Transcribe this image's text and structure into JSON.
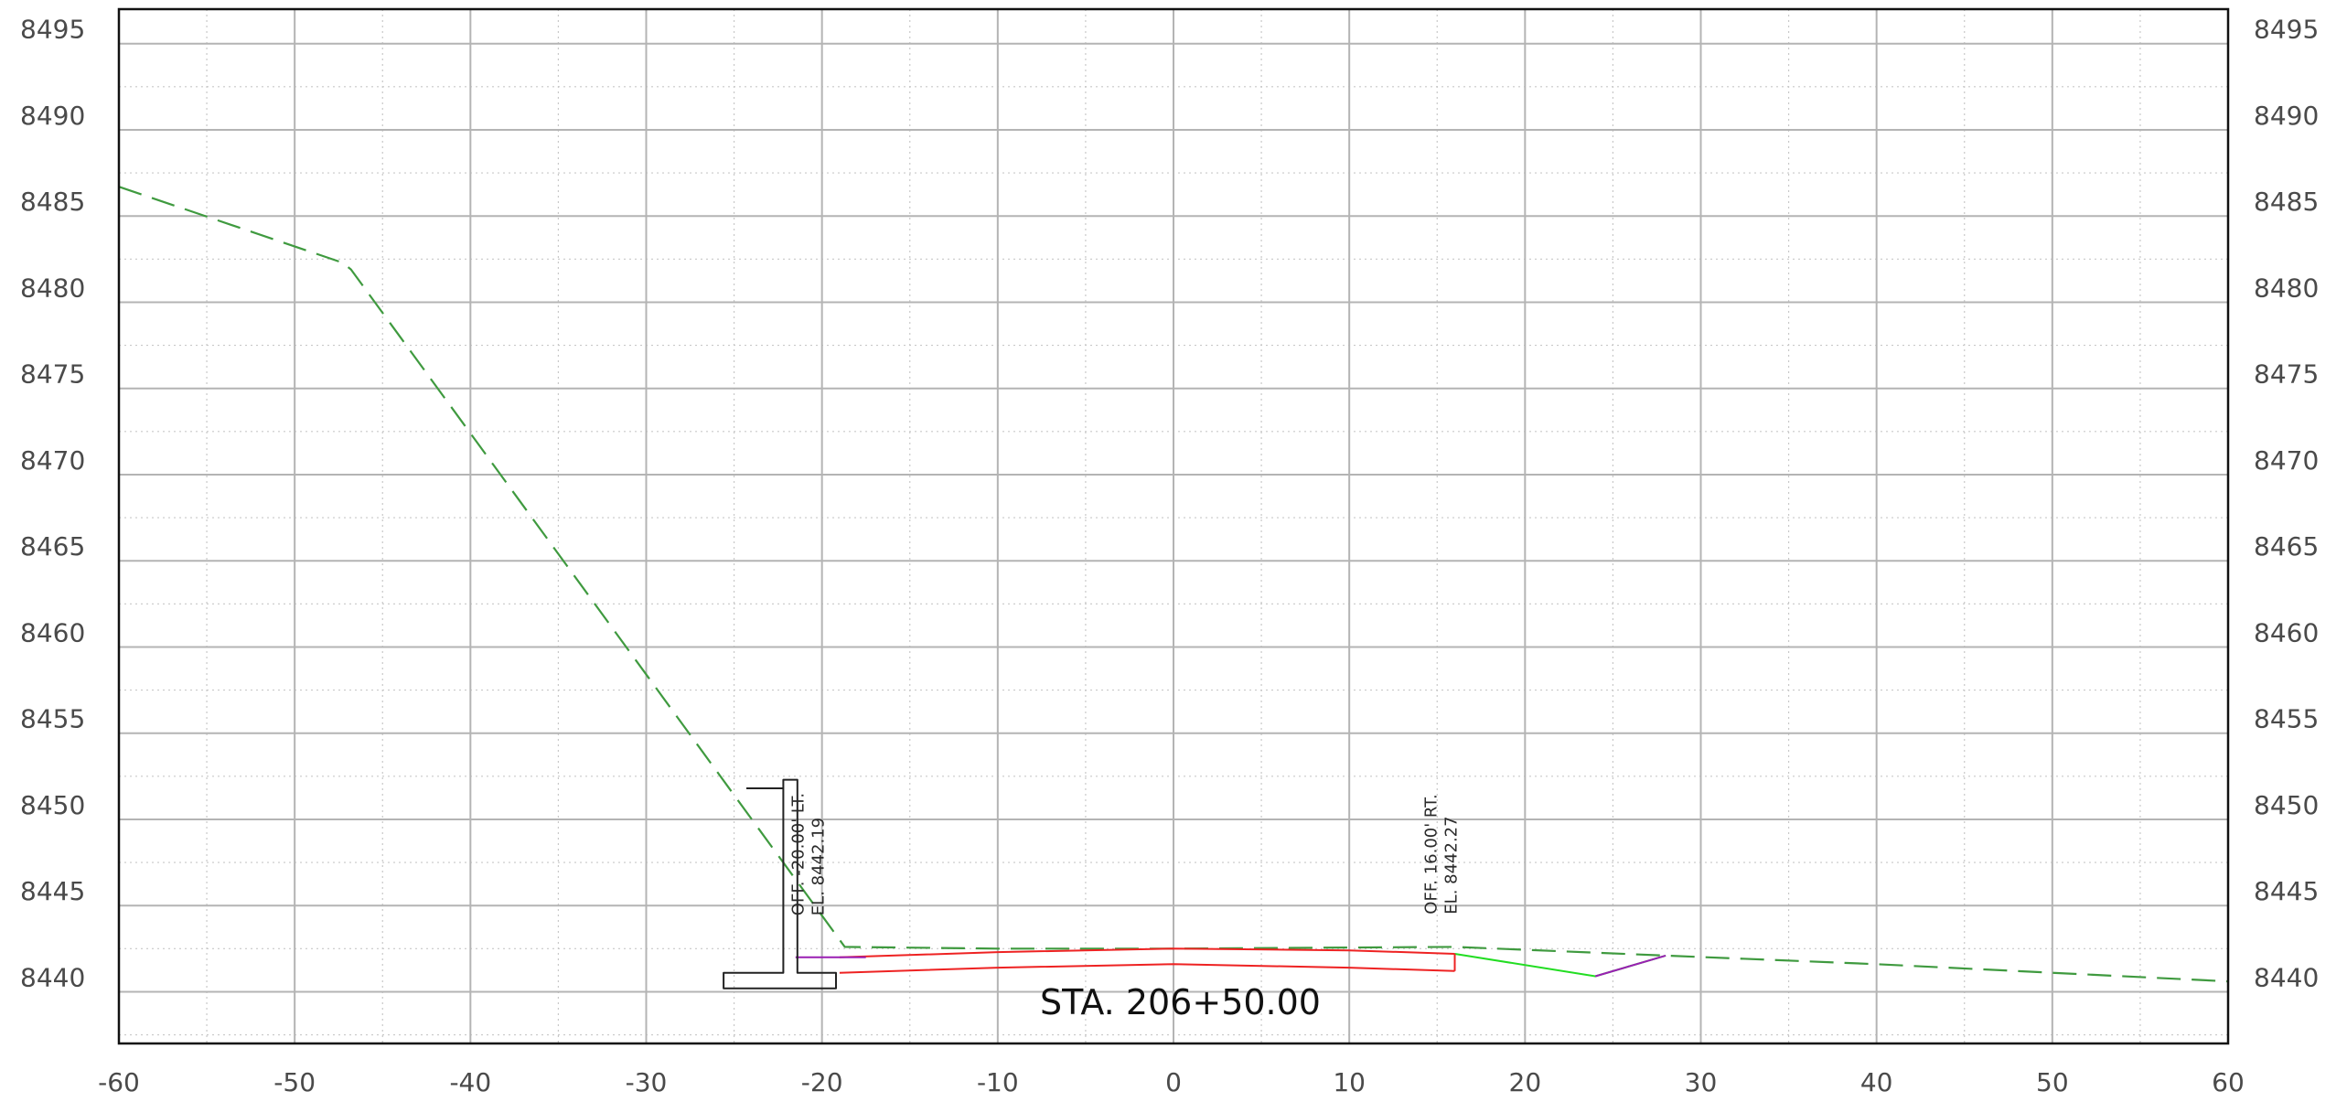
{
  "chart_data": {
    "type": "line",
    "title": "",
    "xlabel": "",
    "ylabel": "",
    "xlim": [
      -60,
      60
    ],
    "ylim": [
      8437,
      8497
    ],
    "grid": true,
    "x_ticks": [
      -60,
      -50,
      -40,
      -30,
      -20,
      -10,
      0,
      10,
      20,
      30,
      40,
      50,
      60
    ],
    "y_ticks": [
      8440,
      8445,
      8450,
      8455,
      8460,
      8465,
      8470,
      8475,
      8480,
      8485,
      8490,
      8495
    ],
    "x_tick_labels": [
      "-60",
      "-50",
      "-40",
      "-30",
      "-20",
      "-10",
      "0",
      "10",
      "20",
      "30",
      "40",
      "50",
      "60"
    ],
    "y_tick_labels": [
      "8440",
      "8445",
      "8450",
      "8455",
      "8460",
      "8465",
      "8470",
      "8475",
      "8480",
      "8485",
      "8490",
      "8495"
    ],
    "station_label": "STA. 206+50.00",
    "annotations": [
      {
        "name": "left-offset-note",
        "x": -20,
        "y": 8442.19,
        "line1": "OFF. -20.00' LT.",
        "line2": "EL. 8442.19"
      },
      {
        "name": "right-offset-note",
        "x": 16,
        "y": 8442.27,
        "line1": "OFF. 16.00' RT.",
        "line2": "EL. 8442.27"
      }
    ],
    "series": [
      {
        "style": "existing-ground",
        "color": "#3f9a3f",
        "dashed": true,
        "points": [
          [
            -60,
            8486.7
          ],
          [
            -47.3,
            8482.3
          ],
          [
            -46.8,
            8481.9
          ],
          [
            -18.7,
            8442.6
          ],
          [
            -10,
            8442.5
          ],
          [
            0,
            8442.5
          ],
          [
            16,
            8442.6
          ],
          [
            28,
            8442.1
          ],
          [
            40,
            8441.6
          ],
          [
            50,
            8441.1
          ],
          [
            60,
            8440.6
          ]
        ]
      },
      {
        "style": "proposed-grading",
        "color": "#22dd22",
        "dashed": false,
        "points": [
          [
            16,
            8442.2
          ],
          [
            24,
            8440.9
          ],
          [
            28,
            8442.1
          ]
        ]
      },
      {
        "style": "ditch-line",
        "color": "#9a1fb3",
        "dashed": false,
        "points": [
          [
            24,
            8440.9
          ],
          [
            28,
            8442.1
          ]
        ]
      },
      {
        "style": "pavement-top",
        "color": "#ee2222",
        "dashed": false,
        "points": [
          [
            -19,
            8442.0
          ],
          [
            -10,
            8442.3
          ],
          [
            0,
            8442.5
          ],
          [
            10,
            8442.4
          ],
          [
            16,
            8442.2
          ]
        ]
      },
      {
        "style": "pavement-bottom",
        "color": "#ee2222",
        "dashed": false,
        "points": [
          [
            -19,
            8441.1
          ],
          [
            -10,
            8441.4
          ],
          [
            0,
            8441.6
          ],
          [
            10,
            8441.4
          ],
          [
            16,
            8441.2
          ]
        ]
      },
      {
        "style": "pavement-edge",
        "color": "#ee2222",
        "dashed": false,
        "points": [
          [
            16,
            8442.2
          ],
          [
            16,
            8441.2
          ]
        ]
      },
      {
        "style": "left-curb-line",
        "color": "#9a1fb3",
        "dashed": false,
        "points": [
          [
            -21.5,
            8442.0
          ],
          [
            -17.5,
            8442.0
          ]
        ]
      },
      {
        "style": "retaining-wall",
        "color": "#222222",
        "dashed": false,
        "closed": true,
        "points": [
          [
            -25.6,
            8440.2
          ],
          [
            -25.6,
            8441.1
          ],
          [
            -22.2,
            8441.1
          ],
          [
            -22.2,
            8452.3
          ],
          [
            -21.4,
            8452.3
          ],
          [
            -21.4,
            8441.1
          ],
          [
            -19.2,
            8441.1
          ],
          [
            -19.2,
            8440.2
          ]
        ]
      },
      {
        "style": "wall-cap",
        "color": "#222222",
        "dashed": false,
        "points": [
          [
            -24.3,
            8451.8
          ],
          [
            -22.2,
            8451.8
          ]
        ]
      }
    ]
  }
}
